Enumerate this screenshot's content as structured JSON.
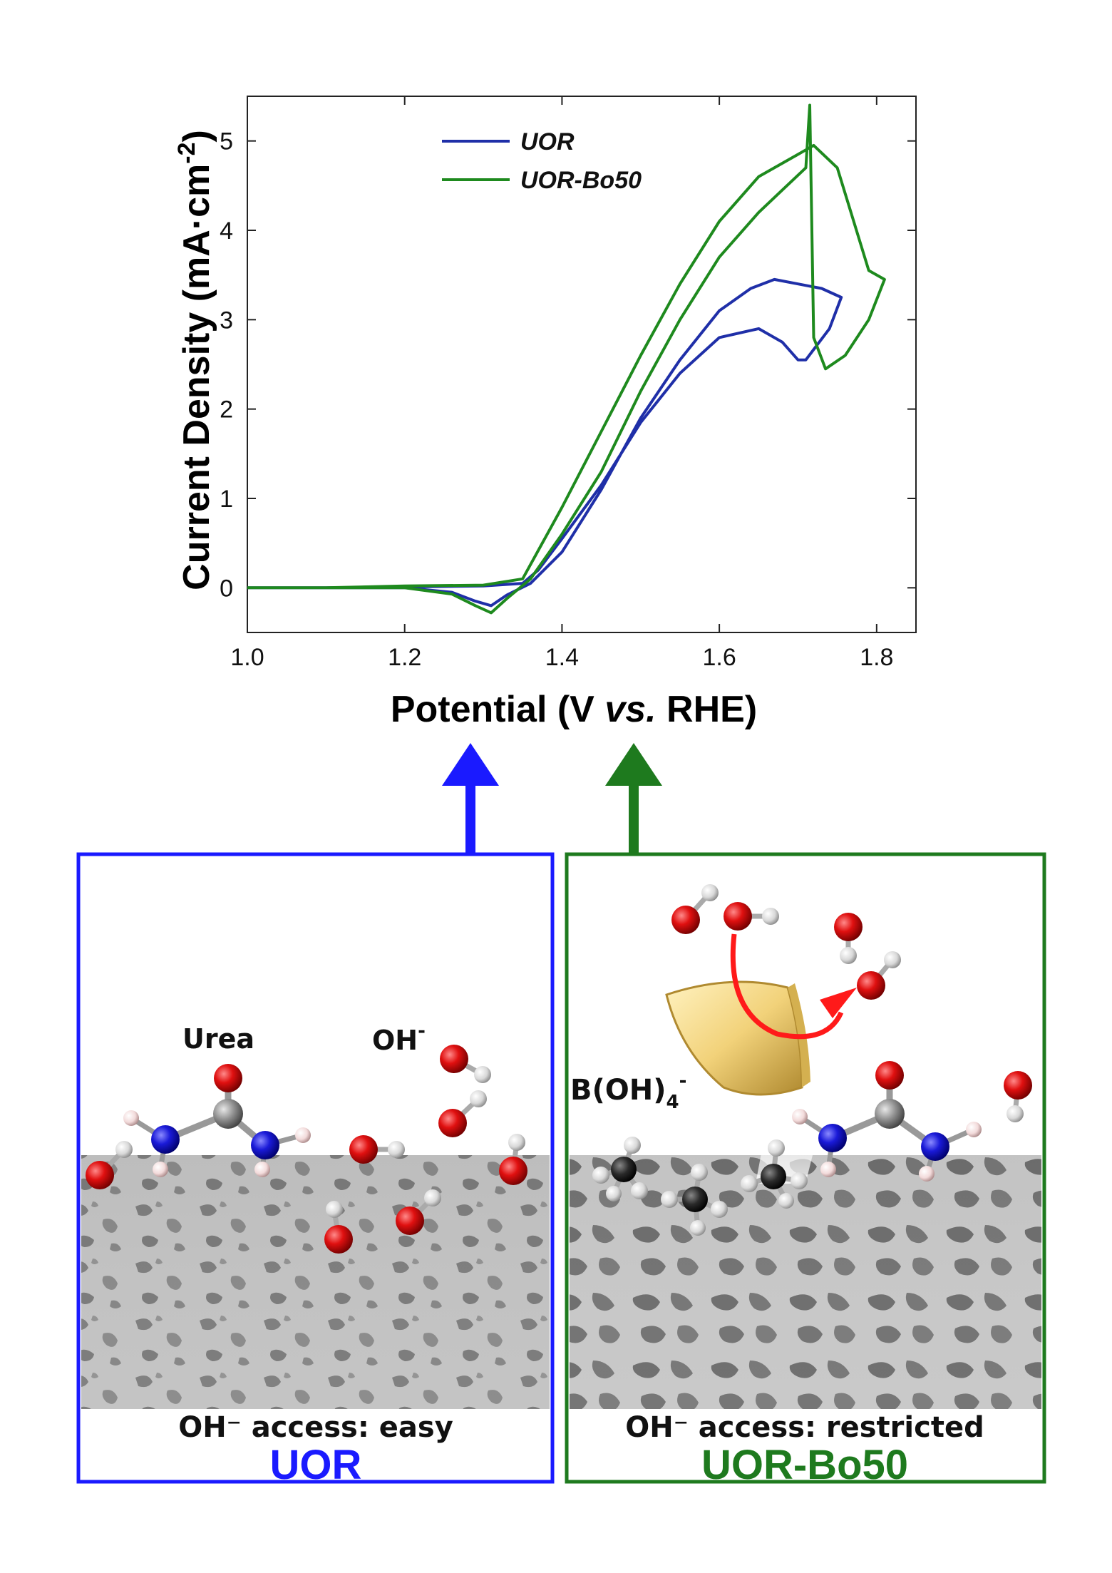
{
  "chart_data": {
    "type": "line",
    "xlabel_parts": {
      "before": "Potential (V ",
      "italic": "vs.",
      "after": " RHE)"
    },
    "ylabel_parts": {
      "base": "Current Density (mA·cm",
      "sup": "-2",
      "close": ")"
    },
    "xlim": [
      1.0,
      1.85
    ],
    "ylim": [
      -0.5,
      5.5
    ],
    "x_ticks": [
      "1.0",
      "1.2",
      "1.4",
      "1.6",
      "1.8"
    ],
    "y_ticks": [
      "0",
      "1",
      "2",
      "3",
      "4",
      "5"
    ],
    "grid": false,
    "legend_position": "top-center",
    "series": [
      {
        "name": "UOR",
        "color": "#1f2fa8",
        "x": [
          1.0,
          1.1,
          1.2,
          1.26,
          1.29,
          1.31,
          1.33,
          1.36,
          1.4,
          1.45,
          1.5,
          1.55,
          1.6,
          1.64,
          1.67,
          1.7,
          1.73,
          1.755,
          1.74,
          1.71,
          1.7,
          1.68,
          1.65,
          1.6,
          1.55,
          1.5,
          1.45,
          1.4,
          1.37,
          1.35,
          1.3,
          1.2,
          1.1,
          1.0
        ],
        "y": [
          0.0,
          0.0,
          0.0,
          -0.05,
          -0.15,
          -0.2,
          -0.08,
          0.05,
          0.4,
          1.1,
          1.9,
          2.55,
          3.1,
          3.35,
          3.45,
          3.4,
          3.35,
          3.25,
          2.9,
          2.55,
          2.55,
          2.75,
          2.9,
          2.8,
          2.4,
          1.85,
          1.15,
          0.55,
          0.2,
          0.05,
          0.02,
          0.01,
          0.0,
          0.0
        ]
      },
      {
        "name": "UOR-Bo50",
        "color": "#1e8a1e",
        "x": [
          1.0,
          1.1,
          1.2,
          1.26,
          1.29,
          1.31,
          1.33,
          1.36,
          1.4,
          1.45,
          1.5,
          1.55,
          1.6,
          1.65,
          1.68,
          1.71,
          1.715,
          1.72,
          1.735,
          1.76,
          1.79,
          1.81,
          1.79,
          1.75,
          1.72,
          1.71,
          1.7,
          1.65,
          1.6,
          1.55,
          1.5,
          1.45,
          1.4,
          1.35,
          1.3,
          1.2,
          1.1,
          1.0
        ],
        "y": [
          0.0,
          0.0,
          0.0,
          -0.07,
          -0.2,
          -0.28,
          -0.12,
          0.1,
          0.6,
          1.3,
          2.2,
          3.0,
          3.7,
          4.2,
          4.45,
          4.7,
          5.4,
          2.8,
          2.45,
          2.6,
          3.0,
          3.45,
          3.55,
          4.7,
          4.95,
          4.9,
          4.85,
          4.6,
          4.1,
          3.4,
          2.6,
          1.75,
          0.9,
          0.1,
          0.03,
          0.02,
          0.0,
          0.0
        ]
      }
    ]
  },
  "panels": {
    "left": {
      "title": "UOR",
      "title_color": "#1a1aff",
      "frame_color": "#1a1aff",
      "caption": "OH⁻ access: easy",
      "label_urea": "Urea",
      "label_oh": "OH",
      "label_oh_sup": "-"
    },
    "right": {
      "title": "UOR-Bo50",
      "title_color": "#1e7a1e",
      "frame_color": "#1e7a1e",
      "caption": "OH⁻ access: restricted",
      "label_boh4": "B(OH)",
      "label_boh4_sub": "4",
      "label_boh4_sup": "-"
    }
  },
  "arrows": {
    "blue": "#1a1aff",
    "green": "#1e7a1e",
    "red": "#ff1a1a"
  }
}
